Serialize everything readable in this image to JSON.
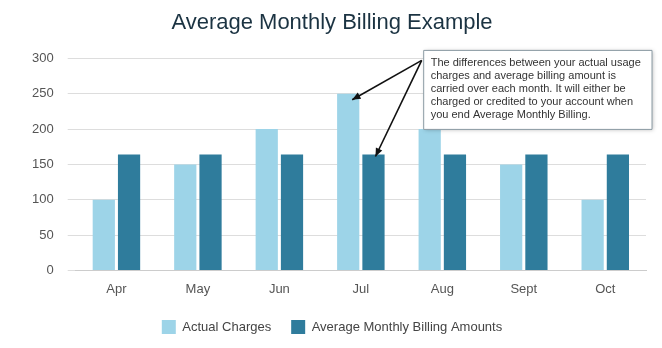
{
  "chart_data": {
    "type": "bar",
    "title": "Average Monthly Billing Example",
    "categories": [
      "Apr",
      "May",
      "Jun",
      "Jul",
      "Aug",
      "Sept",
      "Oct"
    ],
    "series": [
      {
        "name": "Actual Charges",
        "color": "#9dd4e8",
        "values": [
          100,
          150,
          200,
          250,
          200,
          150,
          100
        ]
      },
      {
        "name": "Average Monthly Billing Amounts",
        "color": "#2f7c9c",
        "values": [
          164,
          164,
          164,
          164,
          164,
          164,
          164
        ]
      }
    ],
    "ylim": [
      0,
      300
    ],
    "yticks": [
      0,
      50,
      100,
      150,
      200,
      250,
      300
    ],
    "grid": true,
    "legend": "bottom",
    "annotation": "The differences between your actual usage charges and average billing amount is carried over each month. It will either be charged or credited to your account when you end Average Monthly Billing."
  }
}
